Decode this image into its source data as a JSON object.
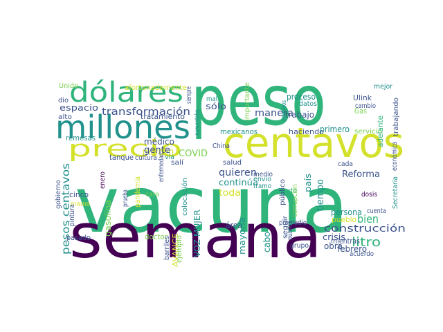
{
  "colors": {
    "purple": "#440154",
    "indigo": "#3b528b",
    "teal": "#21918c",
    "green": "#2fb47c",
    "lime": "#7ad151",
    "yellow": "#d4e12b",
    "light_green": "#a5db36"
  },
  "words": [
    {
      "text": "vacuna",
      "color": "green"
    },
    {
      "text": "semana",
      "color": "purple"
    },
    {
      "text": "peso",
      "color": "green"
    },
    {
      "text": "centavos",
      "color": "yellow"
    },
    {
      "text": "millones",
      "color": "teal"
    },
    {
      "text": "dólares",
      "color": "green"
    },
    {
      "text": "precio",
      "color": "yellow"
    },
    {
      "text": "transformación",
      "color": "indigo"
    },
    {
      "text": "construcción",
      "color": "indigo"
    },
    {
      "text": "pesos centavos",
      "color": "teal"
    },
    {
      "text": "litro",
      "color": "green"
    },
    {
      "text": "bien",
      "color": "green"
    },
    {
      "text": "Reforma",
      "color": "indigo"
    },
    {
      "text": "quieren",
      "color": "indigo"
    },
    {
      "text": "continúa",
      "color": "teal"
    },
    {
      "text": "toda",
      "color": "yellow"
    },
    {
      "text": "margen",
      "color": "yellow"
    },
    {
      "text": "gente",
      "color": "indigo"
    },
    {
      "text": "médico",
      "color": "indigo"
    },
    {
      "text": "COVID",
      "color": "lime"
    },
    {
      "text": "manera",
      "color": "indigo"
    },
    {
      "text": "trabajo",
      "color": "indigo"
    },
    {
      "text": "haciendo",
      "color": "indigo"
    },
    {
      "text": "primero",
      "color": "teal"
    },
    {
      "text": "tiempo",
      "color": "teal"
    },
    {
      "text": "país",
      "color": "teal"
    },
    {
      "text": "persona",
      "color": "teal"
    },
    {
      "text": "obra",
      "color": "indigo"
    },
    {
      "text": "febrero",
      "color": "indigo"
    },
    {
      "text": "crisis",
      "color": "indigo"
    },
    {
      "text": "mientras",
      "color": "indigo"
    },
    {
      "text": "área",
      "color": "indigo"
    },
    {
      "text": "mayoría",
      "color": "teal"
    },
    {
      "text": "cabo",
      "color": "teal"
    },
    {
      "text": "VOZ MUJER",
      "color": "teal"
    },
    {
      "text": "doctor",
      "color": "lime"
    },
    {
      "text": "AVANCE",
      "color": "yellow"
    },
    {
      "text": "gasolina",
      "color": "lime"
    },
    {
      "text": "cinco",
      "color": "indigo"
    },
    {
      "text": "pandemia",
      "color": "yellow"
    },
    {
      "text": "espacio",
      "color": "indigo"
    },
    {
      "text": "tratamiento",
      "color": "indigo"
    },
    {
      "text": "sólo",
      "color": "indigo"
    },
    {
      "text": "afortunadamente",
      "color": "yellow"
    },
    {
      "text": "Unido",
      "color": "lime"
    },
    {
      "text": "dio",
      "color": "indigo"
    },
    {
      "text": "alto",
      "color": "indigo"
    },
    {
      "text": "remesas",
      "color": "teal"
    },
    {
      "text": "mexicanos",
      "color": "teal"
    },
    {
      "text": "importante",
      "color": "lime"
    },
    {
      "text": "proceso",
      "color": "teal"
    },
    {
      "text": "datos",
      "color": "teal"
    },
    {
      "text": "empleos",
      "color": "teal"
    },
    {
      "text": "mejor",
      "color": "teal"
    },
    {
      "text": "Ulink",
      "color": "indigo"
    },
    {
      "text": "cambio",
      "color": "indigo"
    },
    {
      "text": "Gas",
      "color": "lime"
    },
    {
      "text": "servicio",
      "color": "lime"
    },
    {
      "text": "trabajando",
      "color": "indigo"
    },
    {
      "text": "adelante",
      "color": "green"
    },
    {
      "text": "siempre",
      "color": "indigo"
    },
    {
      "text": "mal",
      "color": "teal"
    },
    {
      "text": "aumentaba",
      "color": "teal"
    },
    {
      "text": "China",
      "color": "indigo"
    },
    {
      "text": "tanque",
      "color": "indigo"
    },
    {
      "text": "cultura",
      "color": "indigo"
    },
    {
      "text": "vía",
      "color": "teal"
    },
    {
      "text": "salí",
      "color": "indigo"
    },
    {
      "text": "salud",
      "color": "indigo"
    },
    {
      "text": "medio",
      "color": "indigo"
    },
    {
      "text": "envío",
      "color": "teal"
    },
    {
      "text": "tramo",
      "color": "teal"
    },
    {
      "text": "todo",
      "color": "green"
    },
    {
      "text": "cada",
      "color": "indigo"
    },
    {
      "text": "económica",
      "color": "indigo"
    },
    {
      "text": "Secretaría",
      "color": "teal"
    },
    {
      "text": "dosis",
      "color": "purple"
    },
    {
      "text": "cuenta",
      "color": "indigo"
    },
    {
      "text": "acuerdo",
      "color": "indigo"
    },
    {
      "text": "promedio",
      "color": "indigo"
    },
    {
      "text": "seguir",
      "color": "indigo"
    },
    {
      "text": "pública",
      "color": "indigo"
    },
    {
      "text": "grupo",
      "color": "indigo"
    },
    {
      "text": "público",
      "color": "indigo"
    },
    {
      "text": "corrupción",
      "color": "lime"
    },
    {
      "text": "pueblo",
      "color": "yellow"
    },
    {
      "text": "gobierno",
      "color": "indigo"
    },
    {
      "text": "enero",
      "color": "purple"
    },
    {
      "text": "mismo",
      "color": "yellow"
    },
    {
      "text": "pintura",
      "color": "indigo"
    },
    {
      "text": "pasado",
      "color": "indigo"
    },
    {
      "text": "prueba",
      "color": "indigo"
    },
    {
      "text": "barriles",
      "color": "indigo"
    },
    {
      "text": "enfermedad",
      "color": "indigo"
    },
    {
      "text": "cara",
      "color": "lime"
    },
    {
      "text": "colocación",
      "color": "teal"
    },
    {
      "text": "ejemplo",
      "color": "lime"
    }
  ]
}
